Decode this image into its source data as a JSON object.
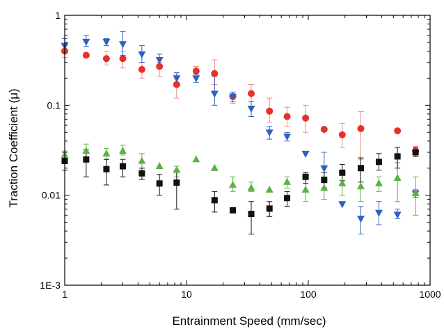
{
  "chart_data": {
    "type": "scatter",
    "xlabel": "Entrainment Speed (mm/sec)",
    "ylabel": "Traction Coefficient (μ)",
    "title": "",
    "xscale": "log",
    "yscale": "log",
    "xlim": [
      1,
      1000
    ],
    "ylim": [
      0.001,
      1
    ],
    "grid": false,
    "legend": "none",
    "x_ticks": [
      {
        "value": 1,
        "label": "1"
      },
      {
        "value": 10,
        "label": "10"
      },
      {
        "value": 100,
        "label": "100"
      },
      {
        "value": 1000,
        "label": "1000"
      }
    ],
    "y_ticks": [
      {
        "value": 0.001,
        "label": "1E-3"
      },
      {
        "value": 0.01,
        "label": "0.01"
      },
      {
        "value": 0.1,
        "label": "0.1"
      },
      {
        "value": 1,
        "label": "1"
      }
    ],
    "series": [
      {
        "marker": "circle",
        "color": "#e8302a",
        "errcolor": "#ee8a80",
        "points": [
          {
            "x": 1.0,
            "y": 0.4,
            "lo": 0.34,
            "hi": 0.46
          },
          {
            "x": 1.5,
            "y": 0.36
          },
          {
            "x": 2.2,
            "y": 0.33,
            "lo": 0.28,
            "hi": 0.4
          },
          {
            "x": 3.0,
            "y": 0.33,
            "lo": 0.26,
            "hi": 0.4
          },
          {
            "x": 4.3,
            "y": 0.25,
            "lo": 0.2,
            "hi": 0.3
          },
          {
            "x": 6.0,
            "y": 0.27,
            "lo": 0.21,
            "hi": 0.3
          },
          {
            "x": 8.3,
            "y": 0.17,
            "lo": 0.12,
            "hi": 0.22
          },
          {
            "x": 12.0,
            "y": 0.24,
            "lo": 0.21,
            "hi": 0.27
          },
          {
            "x": 17.0,
            "y": 0.225,
            "lo": 0.17,
            "hi": 0.32
          },
          {
            "x": 24.0,
            "y": 0.125,
            "lo": 0.105,
            "hi": 0.14
          },
          {
            "x": 34.0,
            "y": 0.135,
            "lo": 0.11,
            "hi": 0.17
          },
          {
            "x": 48.0,
            "y": 0.086,
            "lo": 0.065,
            "hi": 0.12
          },
          {
            "x": 67.0,
            "y": 0.075,
            "lo": 0.058,
            "hi": 0.095
          },
          {
            "x": 95.0,
            "y": 0.072,
            "lo": 0.05,
            "hi": 0.1
          },
          {
            "x": 135.0,
            "y": 0.054
          },
          {
            "x": 190.0,
            "y": 0.047,
            "lo": 0.034,
            "hi": 0.063
          },
          {
            "x": 270.0,
            "y": 0.055,
            "lo": 0.025,
            "hi": 0.085
          },
          {
            "x": 540.0,
            "y": 0.052
          },
          {
            "x": 760.0,
            "y": 0.031,
            "lo": 0.027,
            "hi": 0.035
          }
        ]
      },
      {
        "marker": "triangle-down",
        "color": "#2f5fbf",
        "errcolor": "#2f5fbf",
        "points": [
          {
            "x": 1.0,
            "y": 0.46,
            "lo": 0.38,
            "hi": 0.55
          },
          {
            "x": 1.5,
            "y": 0.51,
            "lo": 0.45,
            "hi": 0.6
          },
          {
            "x": 2.2,
            "y": 0.51,
            "lo": 0.46,
            "hi": 0.55
          },
          {
            "x": 3.0,
            "y": 0.48,
            "lo": 0.36,
            "hi": 0.66
          },
          {
            "x": 4.3,
            "y": 0.37,
            "lo": 0.3,
            "hi": 0.46
          },
          {
            "x": 6.0,
            "y": 0.32,
            "lo": 0.27,
            "hi": 0.37
          },
          {
            "x": 8.3,
            "y": 0.2,
            "lo": 0.17,
            "hi": 0.23
          },
          {
            "x": 12.0,
            "y": 0.2,
            "lo": 0.18,
            "hi": 0.22
          },
          {
            "x": 17.0,
            "y": 0.135,
            "lo": 0.1,
            "hi": 0.21
          },
          {
            "x": 24.0,
            "y": 0.125,
            "lo": 0.11,
            "hi": 0.14
          },
          {
            "x": 34.0,
            "y": 0.092,
            "lo": 0.075,
            "hi": 0.11
          },
          {
            "x": 48.0,
            "y": 0.05,
            "lo": 0.042,
            "hi": 0.058
          },
          {
            "x": 67.0,
            "y": 0.045,
            "lo": 0.04,
            "hi": 0.05
          },
          {
            "x": 95.0,
            "y": 0.029
          },
          {
            "x": 135.0,
            "y": 0.02,
            "lo": 0.014,
            "hi": 0.03
          },
          {
            "x": 190.0,
            "y": 0.008
          },
          {
            "x": 270.0,
            "y": 0.0055,
            "lo": 0.0037,
            "hi": 0.0075
          },
          {
            "x": 380.0,
            "y": 0.0064,
            "lo": 0.0047,
            "hi": 0.0085
          },
          {
            "x": 540.0,
            "y": 0.0061,
            "lo": 0.0055,
            "hi": 0.007
          },
          {
            "x": 760.0,
            "y": 0.0105,
            "lo": 0.0095,
            "hi": 0.0115
          }
        ]
      },
      {
        "marker": "triangle-up",
        "color": "#5cb046",
        "errcolor": "#5cb046",
        "points": [
          {
            "x": 1.0,
            "y": 0.028,
            "lo": 0.025,
            "hi": 0.031
          },
          {
            "x": 1.5,
            "y": 0.031,
            "lo": 0.026,
            "hi": 0.037
          },
          {
            "x": 2.2,
            "y": 0.029,
            "lo": 0.025,
            "hi": 0.033
          },
          {
            "x": 3.0,
            "y": 0.031,
            "lo": 0.028,
            "hi": 0.036
          },
          {
            "x": 4.3,
            "y": 0.024,
            "lo": 0.02,
            "hi": 0.029
          },
          {
            "x": 6.0,
            "y": 0.021
          },
          {
            "x": 8.3,
            "y": 0.019,
            "lo": 0.016,
            "hi": 0.021
          },
          {
            "x": 12.0,
            "y": 0.025
          },
          {
            "x": 17.0,
            "y": 0.02
          },
          {
            "x": 24.0,
            "y": 0.013,
            "lo": 0.011,
            "hi": 0.016
          },
          {
            "x": 34.0,
            "y": 0.012,
            "lo": 0.011,
            "hi": 0.014
          },
          {
            "x": 48.0,
            "y": 0.0115
          },
          {
            "x": 67.0,
            "y": 0.014,
            "lo": 0.012,
            "hi": 0.016
          },
          {
            "x": 95.0,
            "y": 0.0115,
            "lo": 0.0085,
            "hi": 0.015
          },
          {
            "x": 135.0,
            "y": 0.012,
            "lo": 0.009,
            "hi": 0.016
          },
          {
            "x": 190.0,
            "y": 0.0135,
            "lo": 0.01,
            "hi": 0.017
          },
          {
            "x": 270.0,
            "y": 0.0125,
            "lo": 0.0085,
            "hi": 0.019
          },
          {
            "x": 380.0,
            "y": 0.0135,
            "lo": 0.011,
            "hi": 0.016
          },
          {
            "x": 540.0,
            "y": 0.0155,
            "lo": 0.0085,
            "hi": 0.023
          },
          {
            "x": 760.0,
            "y": 0.0105,
            "lo": 0.006,
            "hi": 0.016
          }
        ]
      },
      {
        "marker": "square",
        "color": "#111111",
        "errcolor": "#111111",
        "points": [
          {
            "x": 1.0,
            "y": 0.024,
            "lo": 0.019,
            "hi": 0.03
          },
          {
            "x": 1.5,
            "y": 0.025,
            "lo": 0.016,
            "hi": 0.032
          },
          {
            "x": 2.2,
            "y": 0.0195,
            "lo": 0.013,
            "hi": 0.025
          },
          {
            "x": 3.0,
            "y": 0.021,
            "lo": 0.016,
            "hi": 0.025
          },
          {
            "x": 4.3,
            "y": 0.0175,
            "lo": 0.015,
            "hi": 0.02
          },
          {
            "x": 6.0,
            "y": 0.0135,
            "lo": 0.01,
            "hi": 0.017
          },
          {
            "x": 8.3,
            "y": 0.0138,
            "lo": 0.007,
            "hi": 0.019
          },
          {
            "x": 17.0,
            "y": 0.0088,
            "lo": 0.0065,
            "hi": 0.011
          },
          {
            "x": 24.0,
            "y": 0.0068
          },
          {
            "x": 34.0,
            "y": 0.0062,
            "lo": 0.0037,
            "hi": 0.0085
          },
          {
            "x": 48.0,
            "y": 0.0071,
            "lo": 0.0058,
            "hi": 0.0085
          },
          {
            "x": 67.0,
            "y": 0.0093,
            "lo": 0.0075,
            "hi": 0.011
          },
          {
            "x": 95.0,
            "y": 0.016,
            "lo": 0.0135,
            "hi": 0.018
          },
          {
            "x": 135.0,
            "y": 0.0148,
            "lo": 0.012,
            "hi": 0.018
          },
          {
            "x": 190.0,
            "y": 0.0178,
            "lo": 0.0145,
            "hi": 0.022
          },
          {
            "x": 270.0,
            "y": 0.02,
            "lo": 0.014,
            "hi": 0.026
          },
          {
            "x": 380.0,
            "y": 0.0235,
            "lo": 0.019,
            "hi": 0.029
          },
          {
            "x": 540.0,
            "y": 0.027,
            "lo": 0.02,
            "hi": 0.034
          },
          {
            "x": 760.0,
            "y": 0.03,
            "lo": 0.027,
            "hi": 0.034
          }
        ]
      }
    ]
  }
}
